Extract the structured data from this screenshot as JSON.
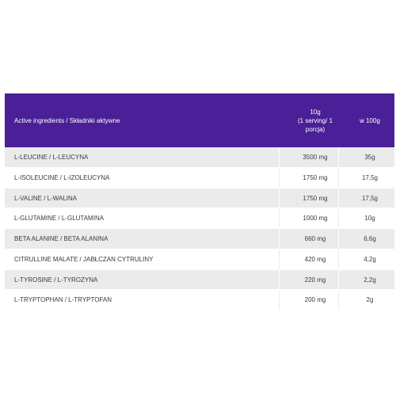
{
  "table": {
    "headers": {
      "name": "Active ingredients / Składniki aktywne",
      "serving_line1": "10g",
      "serving_line2": "(1 serving/ 1",
      "serving_line3": "porcja)",
      "per100": "w 100g"
    },
    "rows": [
      {
        "name": "L-LEUCINE / L-LEUCYNA",
        "serving": "3500 mg",
        "per100": "35g"
      },
      {
        "name": "L-ISOLEUCINE / L-IZOLEUCYNA",
        "serving": "1750 mg",
        "per100": "17,5g"
      },
      {
        "name": "L-VALINE / L-WALINA",
        "serving": "1750 mg",
        "per100": "17,5g"
      },
      {
        "name": "L-GLUTAMINE / L-GLUTAMINA",
        "serving": "1000 mg",
        "per100": "10g"
      },
      {
        "name": "BETA ALANINE / BETA ALANINA",
        "serving": "660 mg",
        "per100": "6,6g"
      },
      {
        "name": "CITRULLINE MALATE / JABŁCZAN CYTRULINY",
        "serving": "420 mg",
        "per100": "4,2g"
      },
      {
        "name": "L-TYROSINE / L-TYROZYNA",
        "serving": "220 mg",
        "per100": "2,2g"
      },
      {
        "name": "L-TRYPTOPHAN / L-TRYPTOFAN",
        "serving": "200 mg",
        "per100": "2g"
      }
    ]
  },
  "colors": {
    "header_bg": "#4a1f97",
    "row_odd_bg": "#ebebeb",
    "row_even_bg": "#ffffff"
  }
}
